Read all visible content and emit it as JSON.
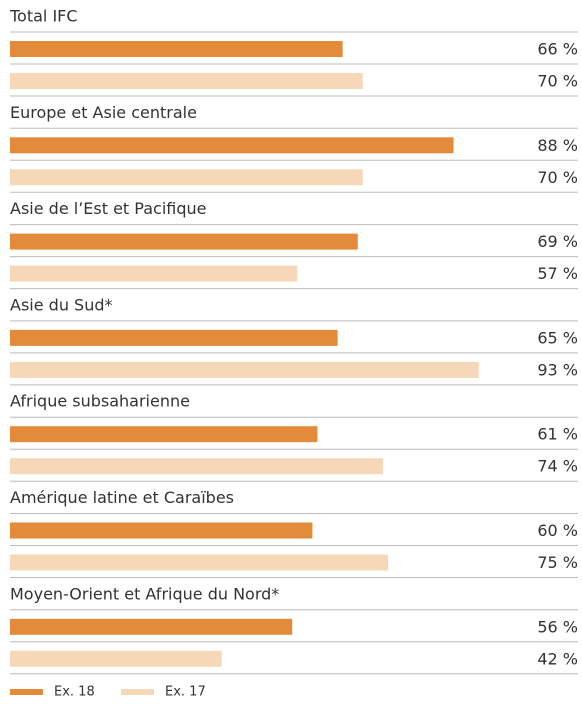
{
  "chart_data": {
    "type": "bar",
    "orientation": "horizontal",
    "categories": [
      "Total IFC",
      "Europe et Asie centrale",
      "Asie de l’Est et Pacifique",
      "Asie du Sud*",
      "Afrique subsaharienne",
      "Amérique latine et Caraïbes",
      "Moyen-Orient et Afrique du Nord*"
    ],
    "series": [
      {
        "name": "Ex. 18",
        "color": "#e38b3a",
        "values": [
          66,
          88,
          69,
          65,
          61,
          60,
          56
        ],
        "value_labels": [
          "66 %",
          "88 %",
          "69 %",
          "65 %",
          "61 %",
          "60 %",
          "56 %"
        ]
      },
      {
        "name": "Ex. 17",
        "color": "#f6d7b8",
        "values": [
          70,
          70,
          57,
          93,
          74,
          75,
          42
        ],
        "value_labels": [
          "70 %",
          "70 %",
          "57 %",
          "93 %",
          "74 %",
          "75 %",
          "42 %"
        ]
      }
    ]
  }
}
